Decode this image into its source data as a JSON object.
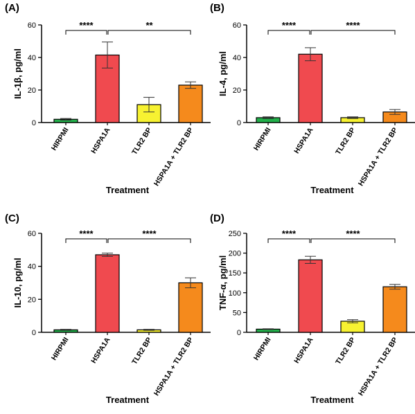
{
  "chart_data": [
    {
      "panel": "(A)",
      "type": "bar",
      "categories": [
        "HIRPMI",
        "HSPA1A",
        "TLR2 BP",
        "HSPA1A + TLR2 BP"
      ],
      "values": [
        2,
        41.5,
        11,
        23
      ],
      "errors": [
        0.5,
        8,
        4.5,
        2
      ],
      "ylabel": "IL-1β, pg/ml",
      "xlabel": "Treatment",
      "ylim": [
        0,
        60
      ],
      "yticks": [
        0,
        20,
        40,
        60
      ],
      "significance": [
        {
          "from": 0,
          "to": 1,
          "label": "****"
        },
        {
          "from": 1,
          "to": 3,
          "label": "**"
        }
      ]
    },
    {
      "panel": "(B)",
      "type": "bar",
      "categories": [
        "HIRPMI",
        "HSPA1A",
        "TLR2 BP",
        "HSPA1A + TLR2 BP"
      ],
      "values": [
        3,
        42,
        3,
        6.5
      ],
      "errors": [
        0.5,
        4,
        0.5,
        1.5
      ],
      "ylabel": "IL-4, pg/ml",
      "xlabel": "Treatment",
      "ylim": [
        0,
        60
      ],
      "yticks": [
        0,
        20,
        40,
        60
      ],
      "significance": [
        {
          "from": 0,
          "to": 1,
          "label": "****"
        },
        {
          "from": 1,
          "to": 3,
          "label": "****"
        }
      ]
    },
    {
      "panel": "(C)",
      "type": "bar",
      "categories": [
        "HIRPMI",
        "HSPA1A",
        "TLR2 BP",
        "HSPA1A + TLR2 BP"
      ],
      "values": [
        1.5,
        47,
        1.5,
        30
      ],
      "errors": [
        0.3,
        1,
        0.3,
        3
      ],
      "ylabel": "IL-10, pg/ml",
      "xlabel": "Treatment",
      "ylim": [
        0,
        60
      ],
      "yticks": [
        0,
        20,
        40,
        60
      ],
      "significance": [
        {
          "from": 0,
          "to": 1,
          "label": "****"
        },
        {
          "from": 1,
          "to": 3,
          "label": "****"
        }
      ]
    },
    {
      "panel": "(D)",
      "type": "bar",
      "categories": [
        "HIRPMI",
        "HSPA1A",
        "TLR2 BP",
        "HSPA1A + TLR2 BP"
      ],
      "values": [
        8,
        183,
        28,
        115
      ],
      "errors": [
        1,
        9,
        4,
        6
      ],
      "ylabel": "TNF-α, pg/ml",
      "xlabel": "Treatment",
      "ylim": [
        0,
        250
      ],
      "yticks": [
        0,
        50,
        100,
        150,
        200,
        250
      ],
      "significance": [
        {
          "from": 0,
          "to": 1,
          "label": "****"
        },
        {
          "from": 1,
          "to": 3,
          "label": "****"
        }
      ]
    }
  ],
  "colors": {
    "bars": [
      "#22b04a",
      "#f04a4f",
      "#f7f231",
      "#f58a1c"
    ],
    "outline": "#000000"
  }
}
